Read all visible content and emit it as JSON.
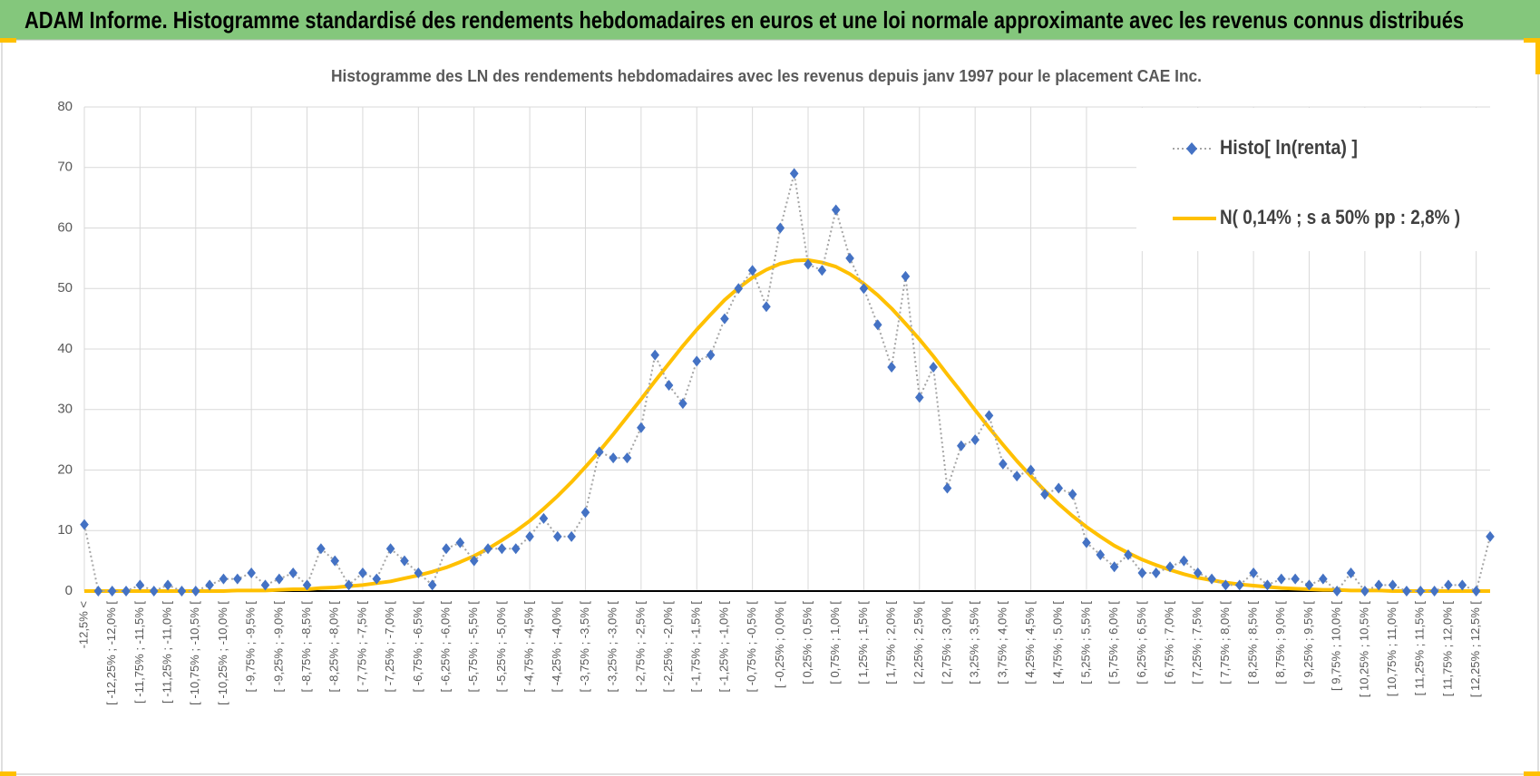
{
  "header": {
    "title": "ADAM Informe. Histogramme standardisé des rendements hebdomadaires en euros et une loi normale approximante avec les revenus connus distribués"
  },
  "chart_data": {
    "type": "line",
    "title": "Histogramme des LN des rendements hebdomadaires avec les revenus depuis janv 1997 pour le placement CAE Inc.",
    "categories": [
      "-12,5% <",
      null,
      "[ -12,25% ; -12,0% [",
      null,
      "[ -11,75% ; -11,5% [",
      null,
      "[ -11,25% ; -11,0% [",
      null,
      "[ -10,75% ; -10,5% [",
      null,
      "[ -10,25% ; -10,0% [",
      null,
      "[ -9,75% ; -9,5% [",
      null,
      "[ -9,25% ; -9,0% [",
      null,
      "[ -8,75% ; -8,5% [",
      null,
      "[ -8,25% ; -8,0% [",
      null,
      "[ -7,75% ; -7,5% [",
      null,
      "[ -7,25% ; -7,0% [",
      null,
      "[ -6,75% ; -6,5% [",
      null,
      "[ -6,25% ; -6,0% [",
      null,
      "[ -5,75% ; -5,5% [",
      null,
      "[ -5,25% ; -5,0% [",
      null,
      "[ -4,75% ; -4,5% [",
      null,
      "[ -4,25% ; -4,0% [",
      null,
      "[ -3,75% ; -3,5% [",
      null,
      "[ -3,25% ; -3,0% [",
      null,
      "[ -2,75% ; -2,5% [",
      null,
      "[ -2,25% ; -2,0% [",
      null,
      "[ -1,75% ; -1,5% [",
      null,
      "[ -1,25% ; -1,0% [",
      null,
      "[ -0,75% ; -0,5% [",
      null,
      "[ -0,25% ; 0,0% [",
      null,
      "[ 0,25% ; 0,5% [",
      null,
      "[ 0,75% ; 1,0% [",
      null,
      "[ 1,25% ; 1,5% [",
      null,
      "[ 1,75% ; 2,0% [",
      null,
      "[ 2,25% ; 2,5% [",
      null,
      "[ 2,75% ; 3,0% [",
      null,
      "[ 3,25% ; 3,5% [",
      null,
      "[ 3,75% ; 4,0% [",
      null,
      "[ 4,25% ; 4,5% [",
      null,
      "[ 4,75% ; 5,0% [",
      null,
      "[ 5,25% ; 5,5% [",
      null,
      "[ 5,75% ; 6,0% [",
      null,
      "[ 6,25% ; 6,5% [",
      null,
      "[ 6,75% ; 7,0% [",
      null,
      "[ 7,25% ; 7,5% [",
      null,
      "[ 7,75% ; 8,0% [",
      null,
      "[ 8,25% ; 8,5% [",
      null,
      "[ 8,75% ; 9,0% [",
      null,
      "[ 9,25% ; 9,5% [",
      null,
      "[ 9,75% ; 10,0% [",
      null,
      "[ 10,25% ; 10,5% [",
      null,
      "[ 10,75% ; 11,0% [",
      null,
      "[ 11,25% ; 11,5% [",
      null,
      "[ 11,75% ; 12,0% [",
      null,
      "[ 12,25% ; 12,5% [",
      null
    ],
    "series": [
      {
        "name": "Histo[ ln(renta) ]",
        "color": "#4472c4",
        "marker": "diamond",
        "line": "dotted",
        "values": [
          11,
          0,
          0,
          0,
          1,
          0,
          1,
          0,
          0,
          1,
          2,
          2,
          3,
          1,
          2,
          3,
          1,
          7,
          5,
          1,
          3,
          2,
          7,
          5,
          3,
          1,
          7,
          8,
          5,
          7,
          7,
          7,
          9,
          12,
          9,
          9,
          13,
          23,
          22,
          22,
          27,
          39,
          34,
          31,
          38,
          39,
          45,
          50,
          53,
          47,
          60,
          69,
          54,
          53,
          63,
          55,
          50,
          44,
          37,
          52,
          32,
          37,
          17,
          24,
          25,
          29,
          21,
          19,
          20,
          16,
          17,
          16,
          8,
          6,
          4,
          6,
          3,
          3,
          4,
          5,
          3,
          2,
          1,
          1,
          3,
          1,
          2,
          2,
          1,
          2,
          0,
          3,
          0,
          1,
          1,
          0,
          0,
          0,
          1,
          1,
          0,
          9
        ]
      },
      {
        "name": "N( 0,14% ; s a 50% pp : 2,8% )",
        "color": "#ffc000",
        "marker": "none",
        "line": "solid",
        "values": [
          0,
          0,
          0,
          0,
          0,
          0,
          0,
          0,
          0,
          0,
          0,
          0.1,
          0.1,
          0.1,
          0.2,
          0.3,
          0.3,
          0.5,
          0.6,
          0.8,
          1.0,
          1.3,
          1.6,
          2.1,
          2.6,
          3.2,
          3.9,
          4.8,
          5.8,
          7.0,
          8.4,
          9.9,
          11.6,
          13.6,
          15.7,
          18.0,
          20.5,
          23.1,
          25.9,
          28.8,
          31.7,
          34.7,
          37.6,
          40.5,
          43.2,
          45.7,
          48.1,
          50.1,
          51.8,
          53.1,
          54.1,
          54.6,
          54.7,
          54.3,
          53.6,
          52.4,
          50.8,
          48.9,
          46.7,
          44.2,
          41.6,
          38.8,
          35.8,
          32.9,
          29.9,
          27.0,
          24.2,
          21.5,
          19.0,
          16.6,
          14.4,
          12.4,
          10.6,
          9.0,
          7.5,
          6.3,
          5.2,
          4.3,
          3.5,
          2.8,
          2.2,
          1.8,
          1.4,
          1.1,
          0.9,
          0.7,
          0.5,
          0.4,
          0.3,
          0.2,
          0.2,
          0.1,
          0.1,
          0.1,
          0,
          0,
          0,
          0,
          0,
          0,
          0,
          0
        ]
      }
    ],
    "ylim": [
      0,
      80
    ],
    "yticks": [
      0,
      10,
      20,
      30,
      40,
      50,
      60,
      70,
      80
    ],
    "grid": true,
    "legend": "top-right"
  }
}
